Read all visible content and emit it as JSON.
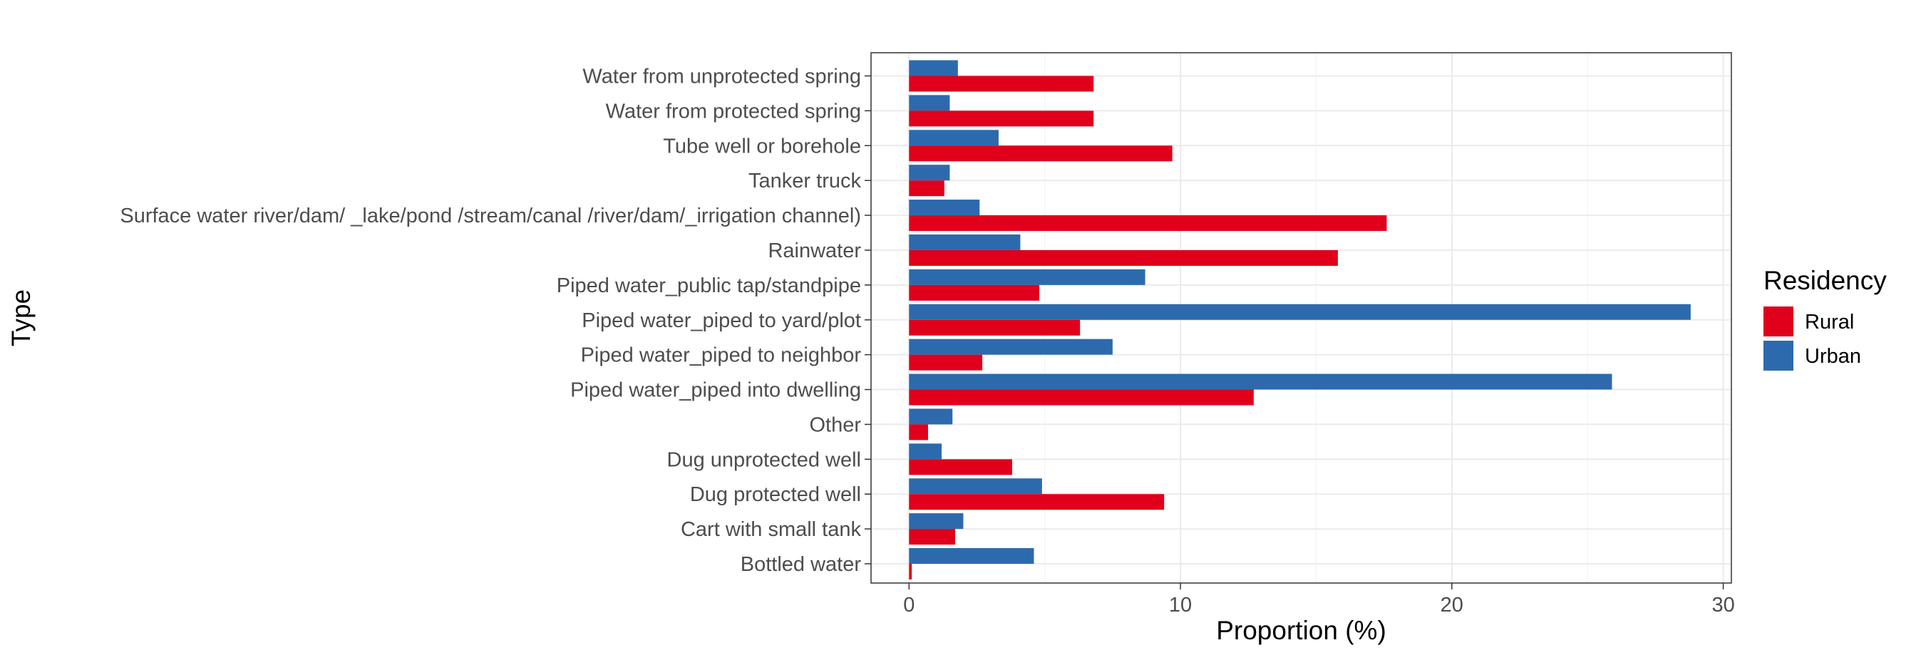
{
  "chart_data": {
    "type": "bar",
    "orientation": "horizontal",
    "title": "",
    "xlabel": "Proportion (%)",
    "ylabel": "Type",
    "xlim": [
      -1.4,
      30.3
    ],
    "xticks": [
      0,
      10,
      20,
      30
    ],
    "grid": true,
    "legend": {
      "title": "Residency",
      "placement": "right"
    },
    "categories": [
      "Water from unprotected spring",
      "Water from protected spring",
      "Tube well or borehole",
      "Tanker truck",
      "Surface water river/dam/ _lake/pond /stream/canal /river/dam/_irrigation channel)",
      "Rainwater",
      "Piped water_public tap/standpipe",
      "Piped water_piped to yard/plot",
      "Piped water_piped to neighbor",
      "Piped water_piped into dwelling",
      "Other",
      "Dug unprotected well",
      "Dug protected well",
      "Cart with small tank",
      "Bottled water"
    ],
    "series": [
      {
        "name": "Rural",
        "color": "#e0001b",
        "values": [
          6.8,
          6.8,
          9.7,
          1.3,
          17.6,
          15.8,
          4.8,
          6.3,
          2.7,
          12.7,
          0.7,
          3.8,
          9.4,
          1.7,
          0.1
        ]
      },
      {
        "name": "Urban",
        "color": "#2d6aad",
        "values": [
          1.8,
          1.5,
          3.3,
          1.5,
          2.6,
          4.1,
          8.7,
          28.8,
          7.5,
          25.9,
          1.6,
          1.2,
          4.9,
          2.0,
          4.6
        ]
      }
    ]
  }
}
